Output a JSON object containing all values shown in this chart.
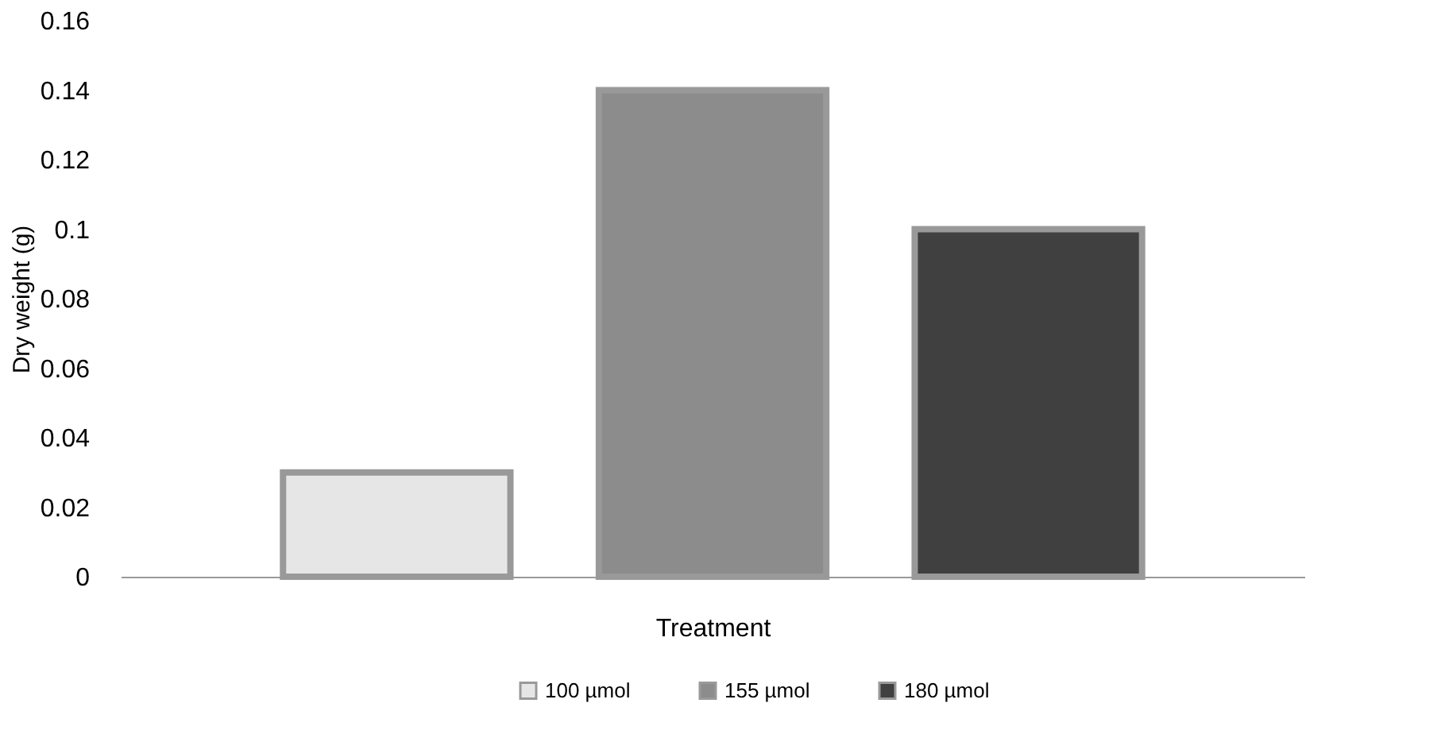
{
  "chart_data": {
    "type": "bar",
    "xlabel": "Treatment",
    "ylabel": "Dry weight (g)",
    "categories": [
      null
    ],
    "series": [
      {
        "name": "100 µmol",
        "color": "#e6e6e6",
        "values": [
          0.03
        ]
      },
      {
        "name": "155 µmol",
        "color": "#8c8c8c",
        "values": [
          0.14
        ]
      },
      {
        "name": "180 µmol",
        "color": "#404040",
        "values": [
          0.1
        ]
      }
    ],
    "ylim": [
      0,
      0.16
    ],
    "yticks": [
      0,
      0.02,
      0.04,
      0.06,
      0.08,
      0.1,
      0.12,
      0.14,
      0.16
    ],
    "grid": false,
    "legend": "bottom"
  }
}
